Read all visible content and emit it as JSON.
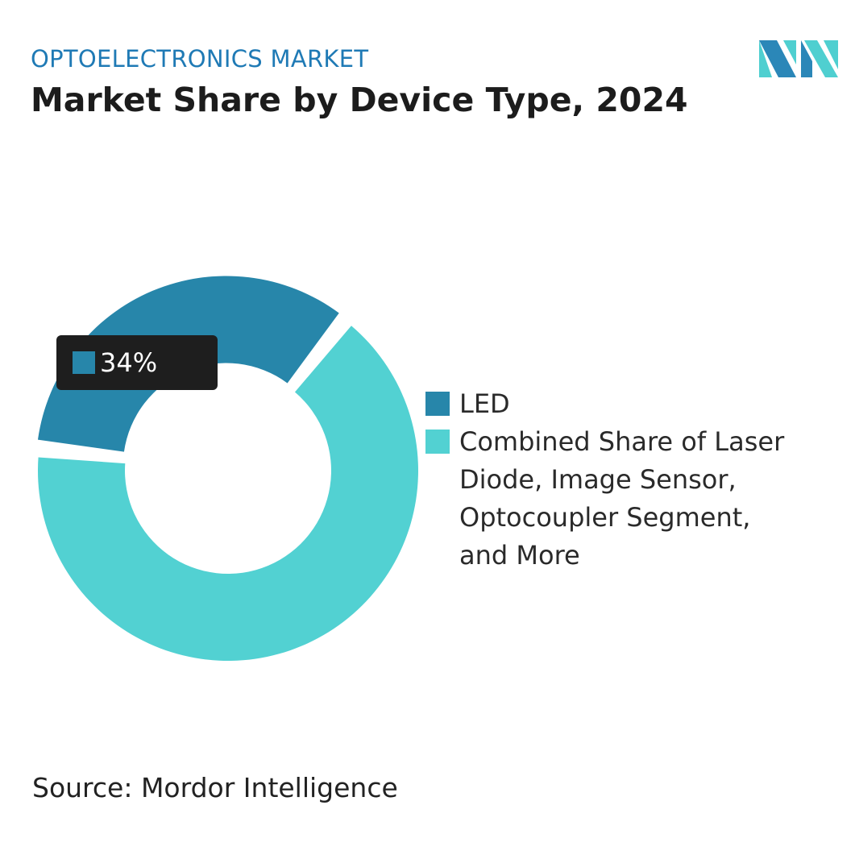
{
  "header": {
    "kicker": "OPTOELECTRONICS MARKET",
    "title": "Market Share by Device Type, 2024"
  },
  "logo": {
    "icon": "mordor-intelligence-logo",
    "colors": [
      "#2b87b8",
      "#4fcfd0"
    ]
  },
  "chart_data": {
    "type": "pie",
    "variant": "donut",
    "title": "Market Share by Device Type, 2024",
    "slices": [
      {
        "label": "LED",
        "value": 34,
        "color": "#2786aa"
      },
      {
        "label": "Combined Share of Laser Diode, Image Sensor, Optocoupler Segment, and More",
        "value": 66,
        "color": "#52d1d2"
      }
    ],
    "data_labels": [
      {
        "slice": "LED",
        "text": "34%"
      }
    ],
    "legend_position": "right"
  },
  "source": "Source: Mordor Intelligence"
}
